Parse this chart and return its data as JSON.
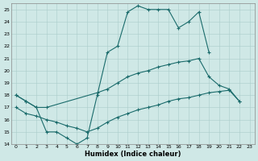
{
  "xlabel": "Humidex (Indice chaleur)",
  "xlim": [
    -0.5,
    23.5
  ],
  "ylim": [
    14,
    25.5
  ],
  "xticks": [
    0,
    1,
    2,
    3,
    4,
    5,
    6,
    7,
    8,
    9,
    10,
    11,
    12,
    13,
    14,
    15,
    16,
    17,
    18,
    19,
    20,
    21,
    22,
    23
  ],
  "yticks": [
    14,
    15,
    16,
    17,
    18,
    19,
    20,
    21,
    22,
    23,
    24,
    25
  ],
  "bg_color": "#cfe8e6",
  "grid_color": "#aaccca",
  "line_color": "#1a6b6b",
  "line1_x": [
    0,
    1,
    2,
    3,
    4,
    5,
    6,
    7,
    8,
    9,
    10,
    11,
    12,
    13,
    14,
    15,
    16,
    17,
    18,
    19
  ],
  "line1_y": [
    18.0,
    17.5,
    17.0,
    15.0,
    15.0,
    14.5,
    14.0,
    14.5,
    18.0,
    21.5,
    22.0,
    24.8,
    25.3,
    25.0,
    25.0,
    25.0,
    23.5,
    24.0,
    24.8,
    21.5
  ],
  "line2_x": [
    0,
    1,
    2,
    3,
    8,
    9,
    10,
    11,
    12,
    13,
    14,
    15,
    16,
    17,
    18,
    19,
    20,
    21,
    22
  ],
  "line2_y": [
    18.0,
    17.5,
    17.0,
    17.0,
    18.2,
    18.5,
    19.0,
    19.5,
    19.8,
    20.0,
    20.3,
    20.5,
    20.7,
    20.8,
    21.0,
    19.5,
    18.8,
    18.5,
    17.5
  ],
  "line3_x": [
    0,
    1,
    2,
    3,
    4,
    5,
    6,
    7,
    8,
    9,
    10,
    11,
    12,
    13,
    14,
    15,
    16,
    17,
    18,
    19,
    20,
    21,
    22
  ],
  "line3_y": [
    17.0,
    16.5,
    16.3,
    16.0,
    15.8,
    15.5,
    15.3,
    15.0,
    15.3,
    15.8,
    16.2,
    16.5,
    16.8,
    17.0,
    17.2,
    17.5,
    17.7,
    17.8,
    18.0,
    18.2,
    18.3,
    18.4,
    17.5
  ]
}
